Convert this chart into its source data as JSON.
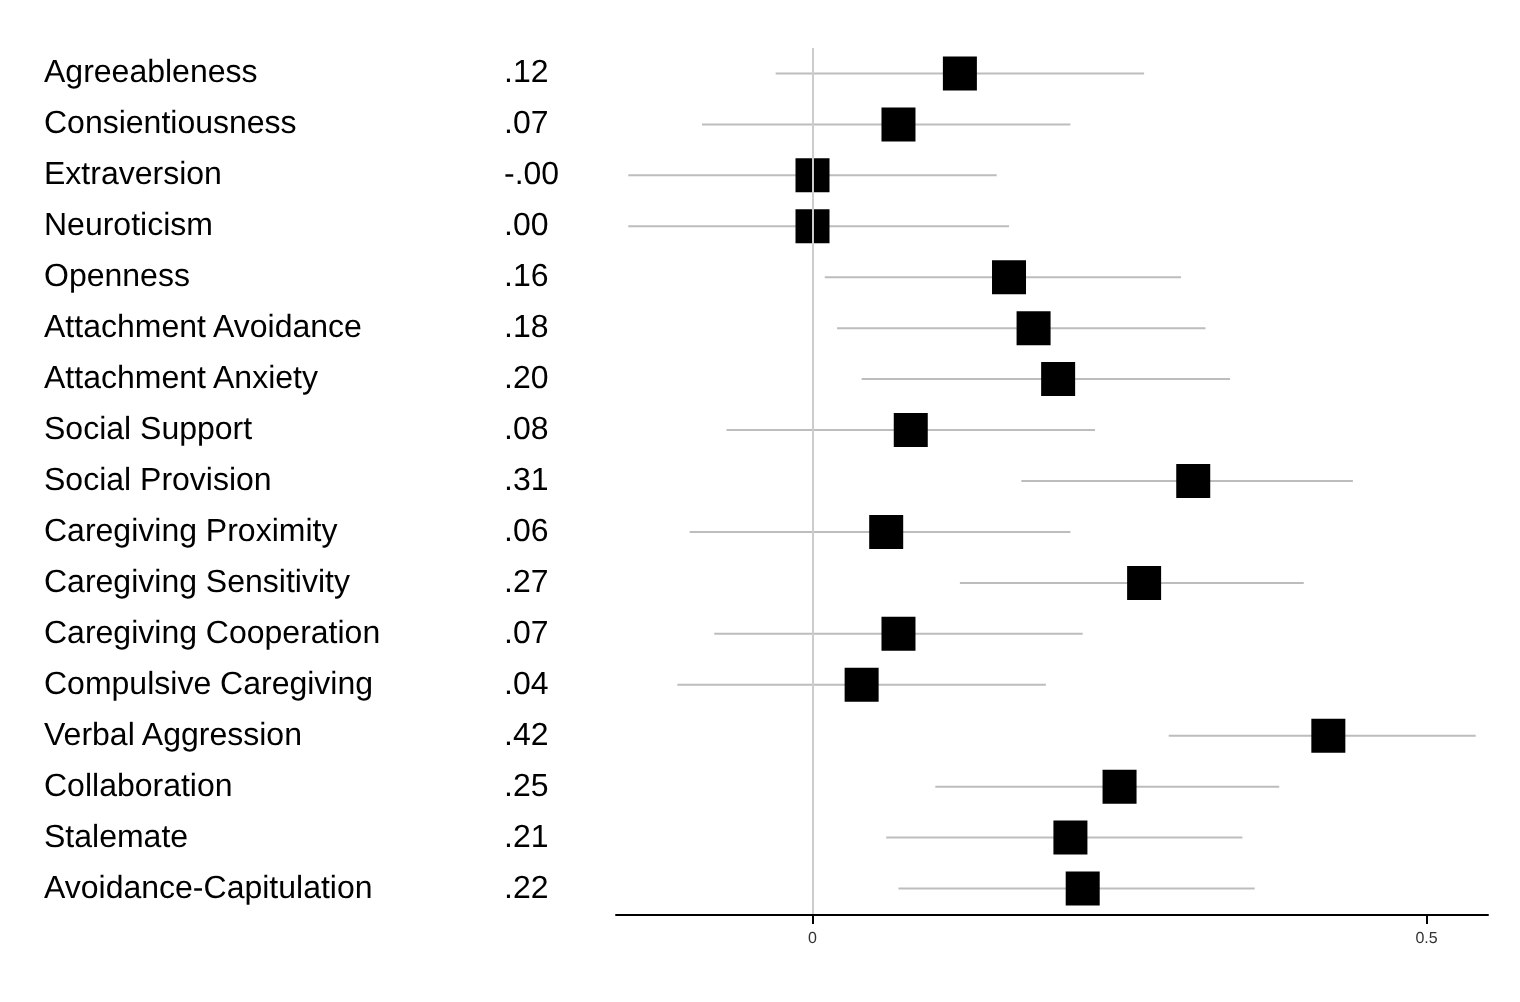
{
  "chart_data": {
    "type": "scatter",
    "orientation": "horizontal",
    "marker": "square",
    "grid": false,
    "categories": [
      "Agreeableness",
      "Consientiousness",
      "Extraversion",
      "Neuroticism",
      "Openness",
      "Attachment Avoidance",
      "Attachment Anxiety",
      "Social Support",
      "Social Provision",
      "Caregiving Proximity",
      "Caregiving Sensitivity",
      "Caregiving Cooperation",
      "Compulsive Caregiving",
      "Verbal Aggression",
      "Collaboration",
      "Stalemate",
      "Avoidance-Capitulation"
    ],
    "series": [
      {
        "color": "#000000",
        "values": [
          0.12,
          0.07,
          -0.0,
          0.0,
          0.16,
          0.18,
          0.2,
          0.08,
          0.31,
          0.06,
          0.27,
          0.07,
          0.04,
          0.42,
          0.25,
          0.21,
          0.22
        ],
        "value_labels": [
          ".12",
          ".07",
          "-.00",
          ".00",
          ".16",
          ".18",
          ".20",
          ".08",
          ".31",
          ".06",
          ".27",
          ".07",
          ".04",
          ".42",
          ".25",
          ".21",
          ".22"
        ],
        "errors": [
          [
            -0.03,
            0.27
          ],
          [
            -0.09,
            0.21
          ],
          [
            -0.15,
            0.15
          ],
          [
            -0.15,
            0.16
          ],
          [
            0.01,
            0.3
          ],
          [
            0.02,
            0.32
          ],
          [
            0.04,
            0.34
          ],
          [
            -0.07,
            0.23
          ],
          [
            0.17,
            0.44
          ],
          [
            -0.1,
            0.21
          ],
          [
            0.12,
            0.4
          ],
          [
            -0.08,
            0.22
          ],
          [
            -0.11,
            0.19
          ],
          [
            0.29,
            0.54
          ],
          [
            0.1,
            0.38
          ],
          [
            0.06,
            0.35
          ],
          [
            0.07,
            0.36
          ]
        ]
      }
    ],
    "xlim": [
      -0.16,
      0.55
    ],
    "xticks": [
      0,
      0.5
    ],
    "ref_lines": [
      {
        "axis": "x",
        "value": 0,
        "color": "#cccccc"
      }
    ]
  }
}
